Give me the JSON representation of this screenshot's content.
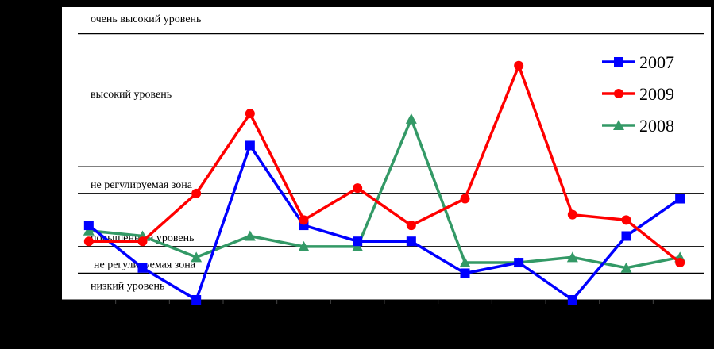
{
  "chart_data": {
    "type": "line",
    "title": "",
    "xlabel": "",
    "ylabel": "",
    "x": [
      1,
      2,
      3,
      4,
      5,
      6,
      7,
      8,
      9,
      10,
      11,
      12
    ],
    "ylim": [
      0,
      55
    ],
    "grid": false,
    "legend": "top-right",
    "zones": [
      {
        "label": "очень высокий уровень",
        "line": 50
      },
      {
        "label": "высокий уровень",
        "line": 25
      },
      {
        "label": "не регулируемая зона",
        "line": 20
      },
      {
        "label": "повышенный уровень",
        "line": 10
      },
      {
        "label": "не регулируемая зона",
        "line": 5
      },
      {
        "label": "низкий уровень",
        "line": null
      }
    ],
    "series": [
      {
        "name": "2007",
        "color": "#0000FF",
        "marker": "square",
        "values": [
          14,
          6,
          0,
          29,
          14,
          11,
          11,
          5,
          7,
          0,
          12,
          19
        ]
      },
      {
        "name": "2009",
        "color": "#FF0000",
        "marker": "circle",
        "values": [
          11,
          11,
          20,
          35,
          15,
          21,
          14,
          19,
          44,
          16,
          15,
          7
        ]
      },
      {
        "name": "2008",
        "color": "#339966",
        "marker": "triangle",
        "values": [
          13,
          12,
          8,
          12,
          10,
          10,
          34,
          7,
          7,
          8,
          6,
          8
        ]
      }
    ]
  }
}
